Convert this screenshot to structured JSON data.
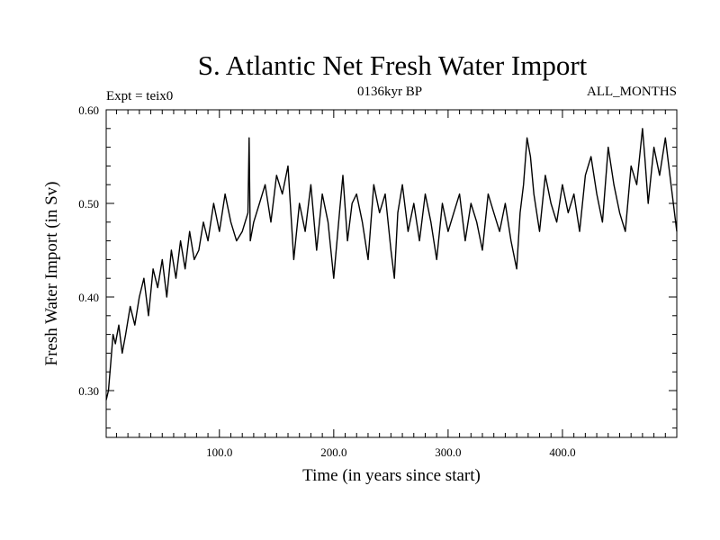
{
  "chart_data": {
    "type": "line",
    "title": "S. Atlantic Net Fresh Water Import",
    "subtitle_left": "Expt = teix0",
    "subtitle_center": "0136kyr BP",
    "subtitle_right": "ALL_MONTHS",
    "xlabel": "Time (in years since start)",
    "ylabel": "Fresh Water Import (in Sv)",
    "xlim": [
      1,
      500
    ],
    "ylim": [
      0.25,
      0.6
    ],
    "x_ticks": [
      {
        "value": 100,
        "label": "100.0"
      },
      {
        "value": 200,
        "label": "200.0"
      },
      {
        "value": 300,
        "label": "300.0"
      },
      {
        "value": 400,
        "label": "400.0"
      }
    ],
    "y_ticks": [
      {
        "value": 0.3,
        "label": "0.30"
      },
      {
        "value": 0.4,
        "label": "0.40"
      },
      {
        "value": 0.5,
        "label": "0.50"
      },
      {
        "value": 0.6,
        "label": "0.60"
      }
    ],
    "series": [
      {
        "name": "Fresh Water Import",
        "color": "#000000",
        "x": [
          1,
          3,
          5,
          7,
          9,
          12,
          15,
          18,
          22,
          26,
          30,
          34,
          38,
          42,
          46,
          50,
          54,
          58,
          62,
          66,
          70,
          74,
          78,
          82,
          86,
          90,
          95,
          100,
          105,
          110,
          115,
          120,
          125,
          126,
          127,
          130,
          135,
          140,
          145,
          150,
          155,
          160,
          165,
          170,
          175,
          180,
          185,
          190,
          195,
          200,
          205,
          208,
          212,
          216,
          220,
          225,
          230,
          235,
          240,
          245,
          250,
          253,
          256,
          260,
          265,
          270,
          275,
          280,
          285,
          290,
          295,
          300,
          305,
          310,
          315,
          320,
          325,
          330,
          335,
          340,
          345,
          350,
          355,
          360,
          363,
          366,
          369,
          372,
          375,
          380,
          385,
          390,
          395,
          400,
          405,
          410,
          415,
          420,
          425,
          430,
          435,
          440,
          445,
          450,
          455,
          460,
          465,
          470,
          472,
          475,
          480,
          485,
          490,
          495,
          500
        ],
        "y": [
          0.29,
          0.3,
          0.33,
          0.36,
          0.35,
          0.37,
          0.34,
          0.36,
          0.39,
          0.37,
          0.4,
          0.42,
          0.38,
          0.43,
          0.41,
          0.44,
          0.4,
          0.45,
          0.42,
          0.46,
          0.43,
          0.47,
          0.44,
          0.45,
          0.48,
          0.46,
          0.5,
          0.47,
          0.51,
          0.48,
          0.46,
          0.47,
          0.49,
          0.57,
          0.46,
          0.48,
          0.5,
          0.52,
          0.48,
          0.53,
          0.51,
          0.54,
          0.44,
          0.5,
          0.47,
          0.52,
          0.45,
          0.51,
          0.48,
          0.42,
          0.49,
          0.53,
          0.46,
          0.5,
          0.51,
          0.48,
          0.44,
          0.52,
          0.49,
          0.51,
          0.45,
          0.42,
          0.49,
          0.52,
          0.47,
          0.5,
          0.46,
          0.51,
          0.48,
          0.44,
          0.5,
          0.47,
          0.49,
          0.51,
          0.46,
          0.5,
          0.48,
          0.45,
          0.51,
          0.49,
          0.47,
          0.5,
          0.46,
          0.43,
          0.49,
          0.52,
          0.57,
          0.55,
          0.51,
          0.47,
          0.53,
          0.5,
          0.48,
          0.52,
          0.49,
          0.51,
          0.47,
          0.53,
          0.55,
          0.51,
          0.48,
          0.56,
          0.52,
          0.49,
          0.47,
          0.54,
          0.52,
          0.58,
          0.55,
          0.5,
          0.56,
          0.53,
          0.57,
          0.52,
          0.47
        ]
      }
    ]
  }
}
